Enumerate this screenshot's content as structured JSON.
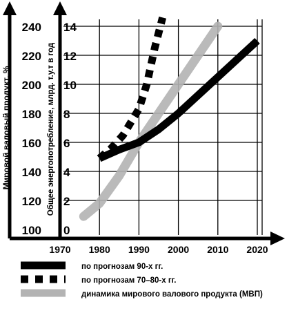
{
  "chart_data": {
    "type": "line",
    "title": "",
    "xlabel": "",
    "x_ticks": [
      "1970",
      "1980",
      "1990",
      "2000",
      "2010",
      "2020"
    ],
    "xlim": [
      1970,
      2020
    ],
    "y_left_outer": {
      "label": "Мировой валовый продукт, %",
      "ticks": [
        "100",
        "120",
        "140",
        "160",
        "180",
        "200",
        "220",
        "240"
      ],
      "ylim": [
        100,
        240
      ]
    },
    "y_left_inner": {
      "label": "Общее энергопотребление, млрд. т.у.т в год",
      "ticks": [
        "0",
        "2",
        "4",
        "6",
        "8",
        "10",
        "12",
        "14"
      ],
      "ylim": [
        0,
        14
      ]
    },
    "grid": true,
    "legend_position": "bottom",
    "series": [
      {
        "name": "по прогнозам 90-х гг.",
        "style": "solid-thick",
        "color": "#000000",
        "axis": "y_left_inner",
        "points": [
          [
            1980,
            4.9
          ],
          [
            1985,
            5.5
          ],
          [
            1990,
            6.0
          ],
          [
            1995,
            6.9
          ],
          [
            2000,
            8.0
          ],
          [
            2010,
            10.5
          ],
          [
            2020,
            13.0
          ]
        ]
      },
      {
        "name": "по прогнозам 70–80-х гг.",
        "style": "dashed-thick",
        "color": "#000000",
        "axis": "y_left_inner",
        "points": [
          [
            1980,
            4.9
          ],
          [
            1983,
            5.6
          ],
          [
            1986,
            6.5
          ],
          [
            1990,
            8.3
          ],
          [
            1992,
            10.0
          ],
          [
            1994,
            12.5
          ],
          [
            1996,
            14.6
          ]
        ]
      },
      {
        "name": "динамика мирового валового продукта (МВП)",
        "style": "gray-thick",
        "color": "#b3b3b3",
        "axis": "y_left_outer",
        "points": [
          [
            1976,
            109
          ],
          [
            1980,
            118
          ],
          [
            1985,
            137
          ],
          [
            1990,
            160
          ],
          [
            1995,
            180
          ],
          [
            2000,
            200
          ],
          [
            2005,
            220
          ],
          [
            2010,
            240
          ]
        ]
      }
    ]
  }
}
